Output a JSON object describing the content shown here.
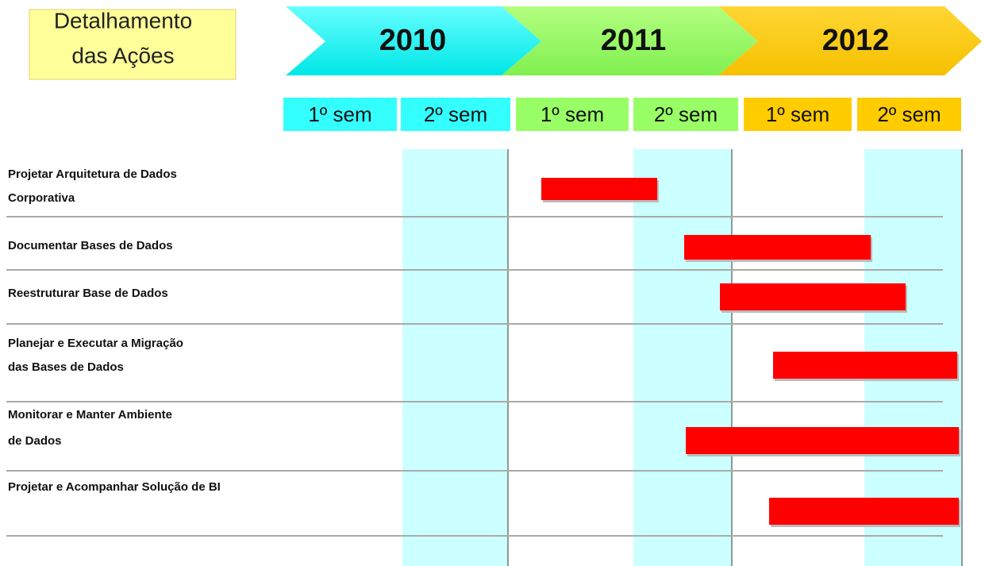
{
  "title_lines": [
    "Detalhamento",
    "das Ações"
  ],
  "years": [
    "2010",
    "2011",
    "2012"
  ],
  "semesters": [
    "1º sem",
    "2º sem",
    "1º sem",
    "2º sem",
    "1º sem",
    "2º sem"
  ],
  "tasks": [
    {
      "lines": [
        "Projetar Arquitetura de Dados",
        "Corporativa"
      ]
    },
    {
      "lines": [
        "Documentar Bases de Dados"
      ]
    },
    {
      "lines": [
        "Reestruturar Base de Dados"
      ]
    },
    {
      "lines": [
        "Planejar e Executar a Migração",
        "das Bases de Dados"
      ]
    },
    {
      "lines": [
        "Monitorar e Manter Ambiente",
        "de Dados"
      ]
    },
    {
      "lines": [
        "Projetar e Acompanhar Solução de BI"
      ]
    }
  ]
}
